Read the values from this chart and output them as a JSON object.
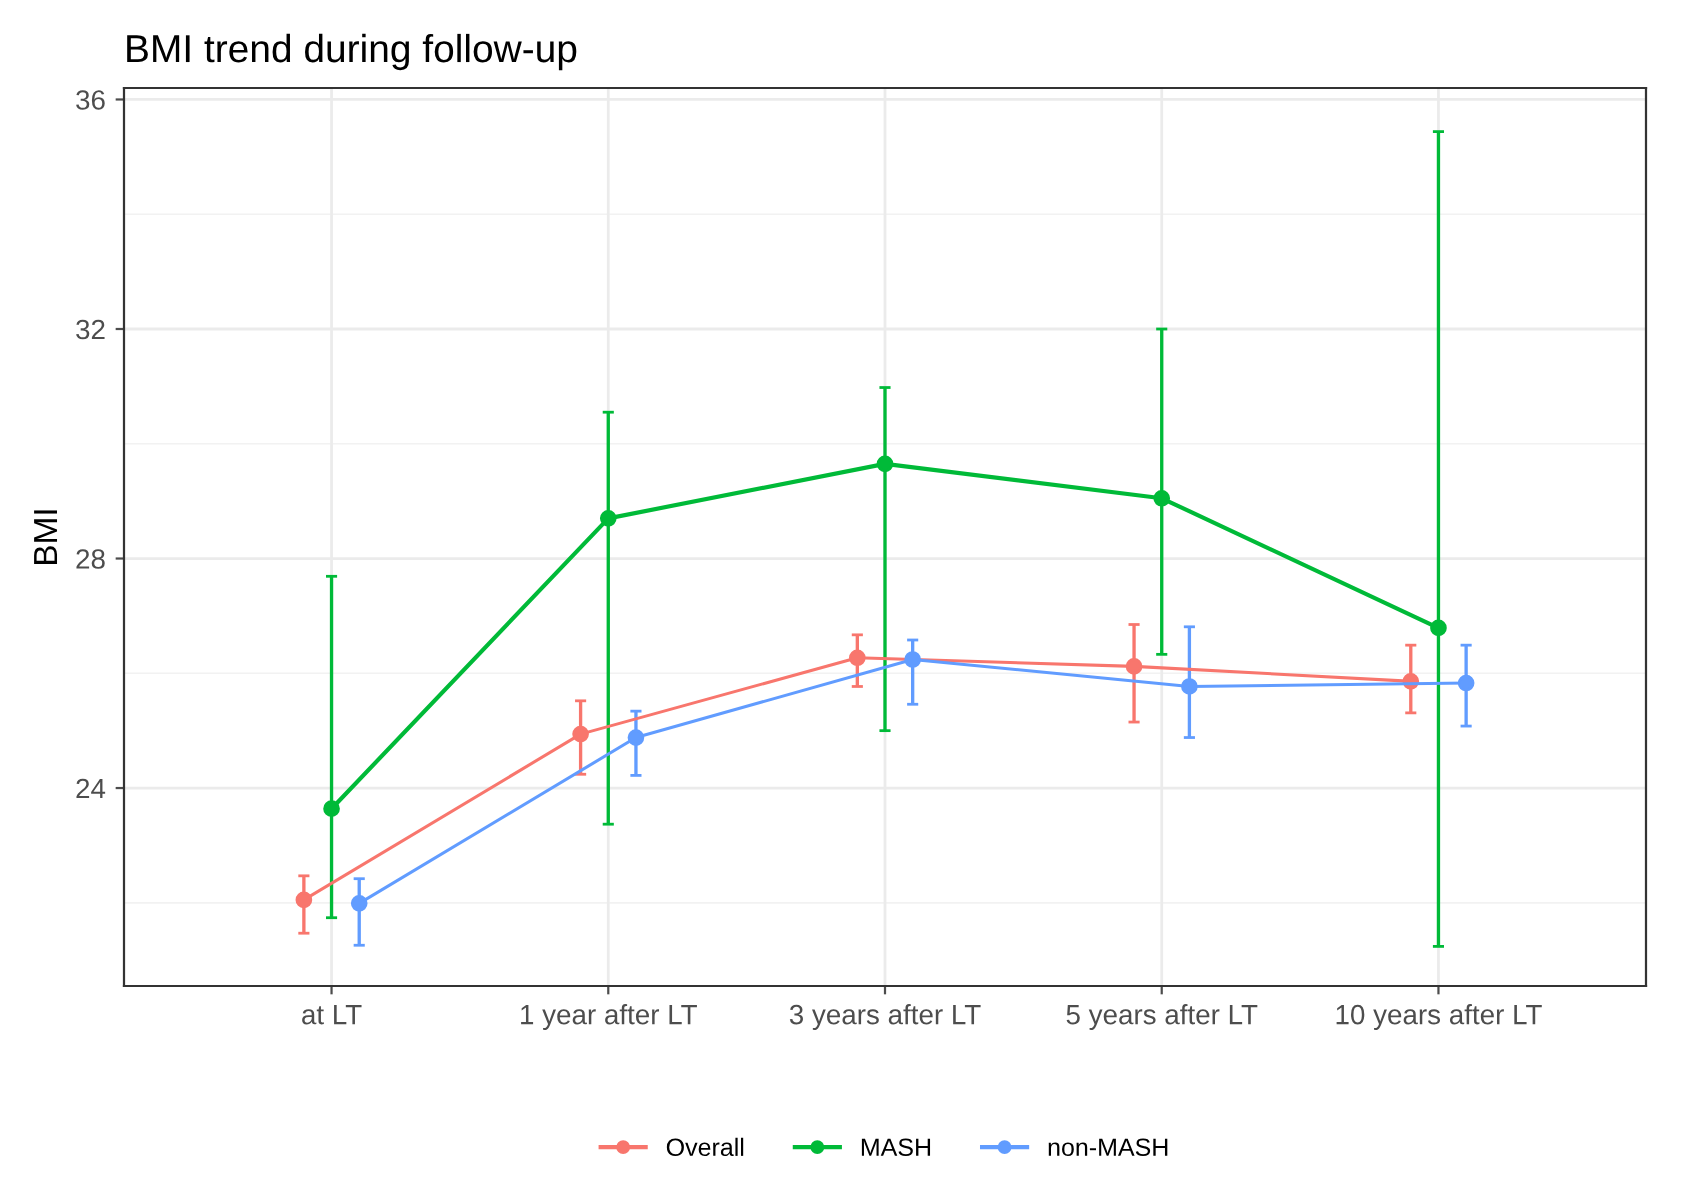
{
  "chart_data": {
    "type": "line",
    "title": "BMI trend during follow-up",
    "ylabel": "BMI",
    "categories": [
      "at LT",
      "1 year after LT",
      "3 years after LT",
      "5 years after LT",
      "10 years after LT"
    ],
    "series": [
      {
        "name": "Overall",
        "color": "#f8766d",
        "values": [
          22.05,
          24.94,
          26.27,
          26.12,
          25.86
        ],
        "errors": [
          [
            21.47,
            22.47
          ],
          [
            24.24,
            25.52
          ],
          [
            25.77,
            26.67
          ],
          [
            25.15,
            26.85
          ],
          [
            25.31,
            26.49
          ]
        ]
      },
      {
        "name": "MASH",
        "color": "#00ba38",
        "values": [
          23.64,
          28.7,
          29.65,
          29.05,
          26.79
        ],
        "errors": [
          [
            21.74,
            27.69
          ],
          [
            23.37,
            30.55
          ],
          [
            25.0,
            30.98
          ],
          [
            26.33,
            32.0
          ],
          [
            21.24,
            35.44
          ]
        ]
      },
      {
        "name": "non-MASH",
        "color": "#619cff",
        "values": [
          21.99,
          24.88,
          26.24,
          25.77,
          25.83
        ],
        "errors": [
          [
            21.26,
            22.42
          ],
          [
            24.22,
            25.34
          ],
          [
            25.46,
            26.58
          ],
          [
            24.88,
            26.81
          ],
          [
            25.08,
            26.49
          ]
        ]
      }
    ],
    "ylim": [
      20.55,
      36.2
    ],
    "yticks": [
      24,
      28,
      32,
      36
    ],
    "grid": true,
    "legend": "bottom",
    "marker": "circle",
    "line_style": "solid"
  }
}
